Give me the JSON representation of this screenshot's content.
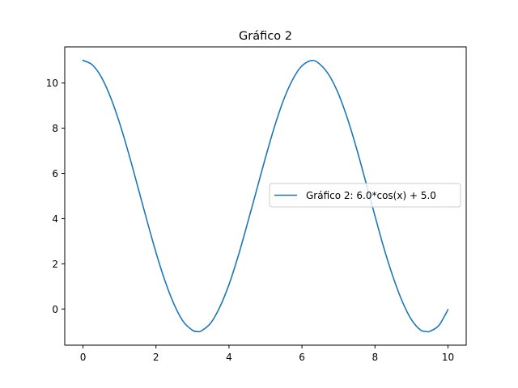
{
  "chart_data": {
    "type": "line",
    "title": "Gráfico 2",
    "xlabel": "",
    "ylabel": "",
    "xlim": [
      -0.5,
      10.5
    ],
    "ylim": [
      -1.6,
      11.6
    ],
    "xticks": [
      0,
      2,
      4,
      6,
      8,
      10
    ],
    "yticks": [
      0,
      2,
      4,
      6,
      8,
      10
    ],
    "grid": false,
    "legend_position": "center-right",
    "series": [
      {
        "name": "Gráfico 2: 6.0*cos(x) + 5.0",
        "color": "#1f77b4",
        "x": [
          0,
          0.25,
          0.5,
          0.75,
          1,
          1.25,
          1.5,
          1.75,
          2,
          2.25,
          2.5,
          2.75,
          3,
          3.1416,
          3.25,
          3.5,
          3.75,
          4,
          4.25,
          4.5,
          4.75,
          5,
          5.25,
          5.5,
          5.75,
          6,
          6.2832,
          6.5,
          6.75,
          7,
          7.25,
          7.5,
          7.75,
          8,
          8.25,
          8.5,
          8.75,
          9,
          9.25,
          9.4248,
          9.5,
          9.75,
          10
        ],
        "y": [
          11.0,
          10.81,
          10.27,
          9.39,
          8.24,
          6.89,
          5.42,
          3.93,
          2.5,
          1.23,
          0.19,
          -0.56,
          -0.94,
          -1.0,
          -0.96,
          -0.62,
          0.09,
          1.08,
          2.33,
          3.75,
          5.22,
          6.7,
          8.08,
          9.27,
          10.17,
          10.76,
          11.0,
          10.82,
          10.33,
          9.52,
          8.41,
          7.08,
          5.61,
          4.12,
          2.67,
          1.4,
          0.33,
          -0.47,
          -0.93,
          -1.0,
          -0.99,
          -0.73,
          -0.03
        ]
      }
    ]
  }
}
